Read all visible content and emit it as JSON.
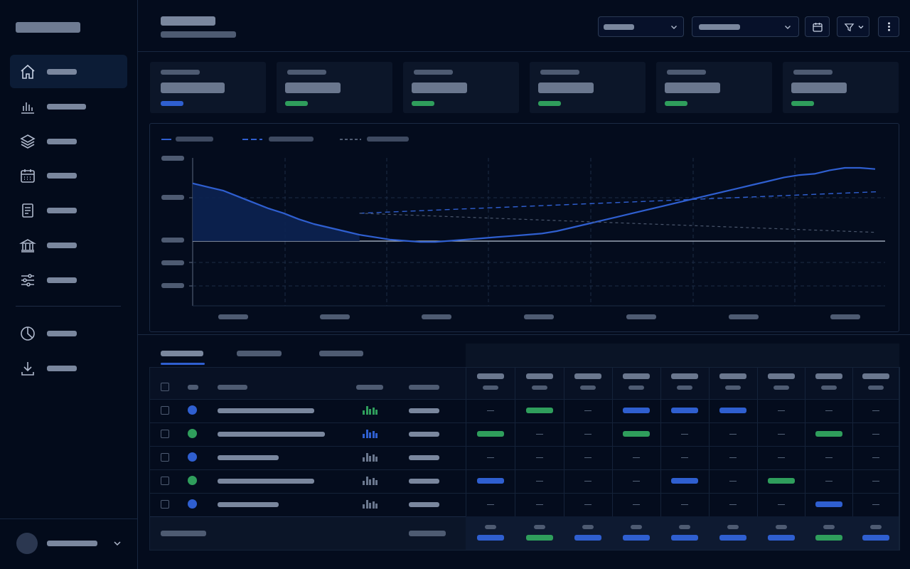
{
  "sidebar": {
    "items": [
      {
        "icon": "home-icon",
        "active": true
      },
      {
        "icon": "bar-chart-icon"
      },
      {
        "icon": "layers-icon"
      },
      {
        "icon": "calendar-icon"
      },
      {
        "icon": "document-icon"
      },
      {
        "icon": "bank-icon"
      },
      {
        "icon": "sliders-icon"
      },
      {
        "icon": "pie-chart-icon"
      },
      {
        "icon": "download-icon"
      }
    ]
  },
  "header": {
    "toolbar_icons": [
      "calendar-icon",
      "filter-icon",
      "more-vertical-icon"
    ]
  },
  "kpis": [
    {
      "accent": "#2f5fd0"
    },
    {
      "accent": "#2f9e5c"
    },
    {
      "accent": "#2f9e5c"
    },
    {
      "accent": "#2f9e5c"
    },
    {
      "accent": "#2f9e5c"
    },
    {
      "accent": "#2f9e5c"
    }
  ],
  "chart_data": {
    "type": "line",
    "grid": true,
    "legend_position": "top-left",
    "series": [
      {
        "style": "solid-with-area",
        "color": "#2f5fd0",
        "values": [
          0.87,
          0.84,
          0.81,
          0.76,
          0.71,
          0.66,
          0.62,
          0.57,
          0.53,
          0.5,
          0.47,
          0.44,
          0.42,
          0.4,
          0.39,
          0.38,
          0.38,
          0.39,
          0.4,
          0.41,
          0.42,
          0.43,
          0.44,
          0.45,
          0.47,
          0.5,
          0.53,
          0.56,
          0.59,
          0.62,
          0.65,
          0.68,
          0.71,
          0.74,
          0.77,
          0.8,
          0.83,
          0.86,
          0.89,
          0.92,
          0.94,
          0.95,
          0.98,
          1.0,
          1.0,
          0.99
        ]
      },
      {
        "style": "dashed",
        "color": "#2f5fd0",
        "values": [
          0.62,
          0.8
        ]
      },
      {
        "style": "dotted",
        "color": "#5e6a80",
        "values": [
          0.62,
          0.46
        ]
      }
    ]
  },
  "table": {
    "row_dot_colors": [
      "#2f5fd0",
      "#2f9e5c",
      "#2f5fd0",
      "#2f9e5c",
      "#2f5fd0"
    ],
    "grid_columns": 9
  },
  "colors": {
    "accent_blue": "#2f5fd0",
    "accent_green": "#2f9e5c",
    "background": "#040c1d",
    "panel": "#0c1629"
  }
}
